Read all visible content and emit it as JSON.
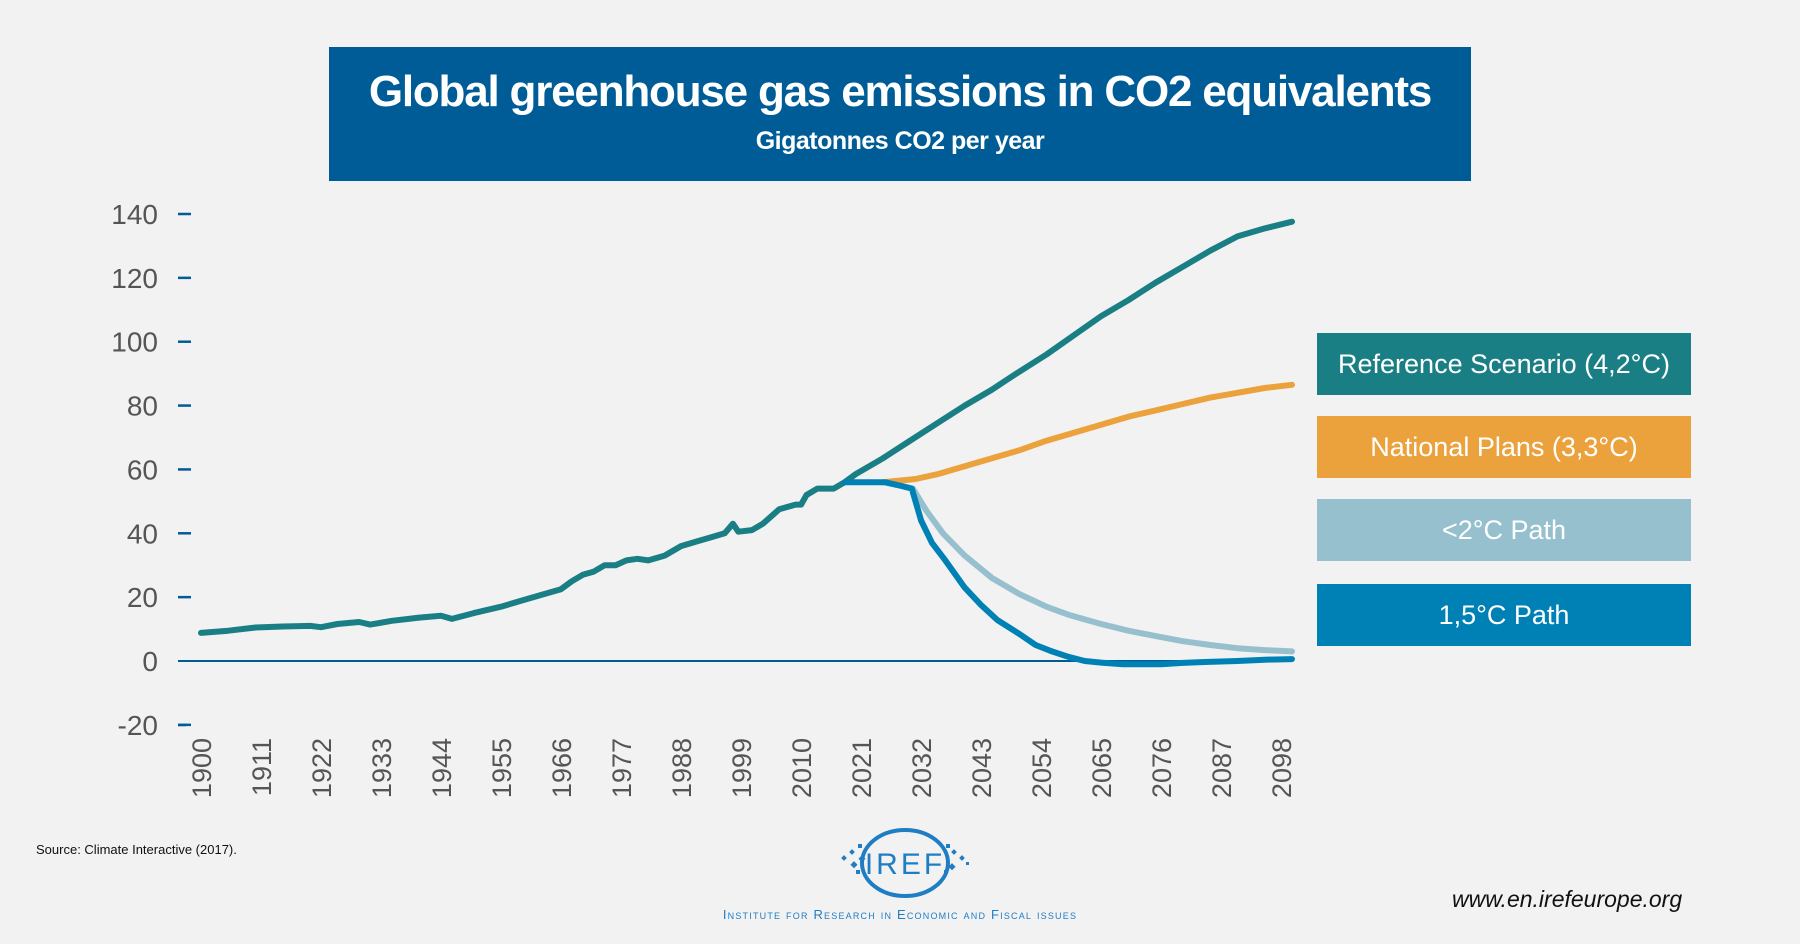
{
  "header": {
    "title": "Global greenhouse gas emissions in CO2 equivalents",
    "subtitle": "Gigatonnes CO2 per year"
  },
  "colors": {
    "background": "#f2f2f2",
    "title_bg": "#005c96",
    "axis": "#005c96",
    "reference": "#1a7f84",
    "national": "#eca23c",
    "below2": "#97c0cf",
    "path15": "#0081b5"
  },
  "chart_data": {
    "type": "line",
    "title": "Global greenhouse gas emissions in CO2 equivalents",
    "subtitle": "Gigatonnes CO2 per year",
    "xlabel": "",
    "ylabel": "",
    "xlim": [
      1900,
      2100
    ],
    "ylim": [
      -20,
      140
    ],
    "grid": false,
    "legend_placement": "right",
    "x_ticks": [
      "1900",
      "1911",
      "1922",
      "1933",
      "1944",
      "1955",
      "1966",
      "1977",
      "1988",
      "1999",
      "2010",
      "2021",
      "2032",
      "2043",
      "2054",
      "2065",
      "2076",
      "2087",
      "2098"
    ],
    "y_ticks": [
      "-20",
      "0",
      "20",
      "40",
      "60",
      "80",
      "100",
      "120",
      "140"
    ],
    "series": [
      {
        "name": "Reference Scenario (4,2°C)",
        "color": "#1a7f84",
        "points": [
          [
            1900,
            8.8
          ],
          [
            1905,
            9.5
          ],
          [
            1910,
            10.5
          ],
          [
            1915,
            10.8
          ],
          [
            1920,
            11
          ],
          [
            1922,
            10.6
          ],
          [
            1925,
            11.6
          ],
          [
            1929,
            12.2
          ],
          [
            1931,
            11.4
          ],
          [
            1935,
            12.6
          ],
          [
            1940,
            13.6
          ],
          [
            1944,
            14.2
          ],
          [
            1946,
            13.2
          ],
          [
            1950,
            15
          ],
          [
            1955,
            17
          ],
          [
            1959,
            19
          ],
          [
            1962,
            20.5
          ],
          [
            1966,
            22.5
          ],
          [
            1968,
            25
          ],
          [
            1970,
            27
          ],
          [
            1972,
            28
          ],
          [
            1974,
            30
          ],
          [
            1976,
            30
          ],
          [
            1978,
            31.5
          ],
          [
            1980,
            32
          ],
          [
            1982,
            31.5
          ],
          [
            1985,
            33
          ],
          [
            1988,
            36
          ],
          [
            1991,
            37.5
          ],
          [
            1994,
            39
          ],
          [
            1996,
            40
          ],
          [
            1997.5,
            43
          ],
          [
            1998.5,
            40.5
          ],
          [
            2001,
            41
          ],
          [
            2003,
            43
          ],
          [
            2006,
            47.5
          ],
          [
            2009,
            49
          ],
          [
            2010,
            49
          ],
          [
            2011,
            52
          ],
          [
            2013,
            54
          ],
          [
            2016,
            54
          ],
          [
            2018,
            56
          ],
          [
            2020,
            58.5
          ],
          [
            2025,
            63.5
          ],
          [
            2030,
            69
          ],
          [
            2035,
            74.5
          ],
          [
            2040,
            80
          ],
          [
            2045,
            85
          ],
          [
            2049,
            89.5
          ],
          [
            2055,
            96
          ],
          [
            2060,
            102
          ],
          [
            2065,
            108
          ],
          [
            2070,
            113
          ],
          [
            2075,
            118.5
          ],
          [
            2080,
            123.5
          ],
          [
            2085,
            128.5
          ],
          [
            2090,
            133
          ],
          [
            2095,
            135.5
          ],
          [
            2100,
            137.6
          ]
        ]
      },
      {
        "name": "National Plans (3,3°C)",
        "color": "#eca23c",
        "points": [
          [
            2025,
            56
          ],
          [
            2028,
            56.5
          ],
          [
            2031,
            57
          ],
          [
            2035,
            58.5
          ],
          [
            2040,
            61
          ],
          [
            2045,
            63.5
          ],
          [
            2050,
            66
          ],
          [
            2055,
            69
          ],
          [
            2060,
            71.5
          ],
          [
            2065,
            74
          ],
          [
            2070,
            76.5
          ],
          [
            2075,
            78.5
          ],
          [
            2080,
            80.5
          ],
          [
            2085,
            82.5
          ],
          [
            2090,
            84
          ],
          [
            2095,
            85.5
          ],
          [
            2100,
            86.5
          ]
        ]
      },
      {
        "name": "<2°C Path",
        "color": "#97c0cf",
        "points": [
          [
            2025,
            56
          ],
          [
            2028,
            55
          ],
          [
            2030.5,
            54
          ],
          [
            2033,
            47
          ],
          [
            2036,
            40
          ],
          [
            2040,
            33
          ],
          [
            2045,
            26
          ],
          [
            2050,
            21
          ],
          [
            2055,
            17
          ],
          [
            2059,
            14.5
          ],
          [
            2065,
            11.6
          ],
          [
            2070,
            9.5
          ],
          [
            2075,
            7.8
          ],
          [
            2080,
            6.2
          ],
          [
            2085,
            5
          ],
          [
            2090,
            4
          ],
          [
            2095,
            3.4
          ],
          [
            2100,
            3
          ]
        ]
      },
      {
        "name": "1,5°C Path",
        "color": "#0081b5",
        "points": [
          [
            2018,
            56
          ],
          [
            2025.4,
            56
          ],
          [
            2028,
            55
          ],
          [
            2030.3,
            54
          ],
          [
            2032,
            44
          ],
          [
            2034,
            37
          ],
          [
            2036.4,
            31.6
          ],
          [
            2040,
            23
          ],
          [
            2043,
            17.5
          ],
          [
            2046,
            12.8
          ],
          [
            2050,
            8.5
          ],
          [
            2053,
            5
          ],
          [
            2056,
            3
          ],
          [
            2059,
            1.3
          ],
          [
            2062,
            0
          ],
          [
            2065,
            -0.5
          ],
          [
            2069,
            -1
          ],
          [
            2076,
            -1
          ],
          [
            2080,
            -0.6
          ],
          [
            2084,
            -0.3
          ],
          [
            2090,
            0
          ],
          [
            2095,
            0.4
          ],
          [
            2100,
            0.6
          ]
        ]
      }
    ]
  },
  "legend": [
    {
      "label": "Reference Scenario (4,2°C)",
      "color": "#1a7f84"
    },
    {
      "label": "National Plans (3,3°C)",
      "color": "#eca23c"
    },
    {
      "label": "<2°C Path",
      "color": "#97c0cf"
    },
    {
      "label": "1,5°C Path",
      "color": "#0081b5"
    }
  ],
  "footer": {
    "source": "Source: Climate Interactive (2017).",
    "logo_text": "IREF",
    "logo_subtitle": "Institute for Research in Economic and Fiscal issues",
    "url": "www.en.irefeurope.org"
  }
}
